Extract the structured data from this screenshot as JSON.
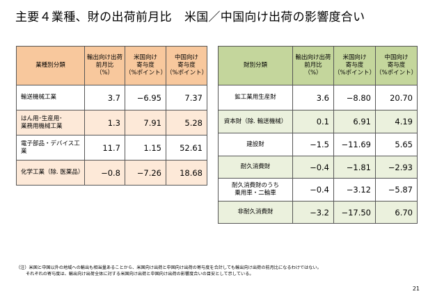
{
  "title": {
    "part1": "主要４業種、財の出荷前月比",
    "part2": "米国／中国向け出荷の影響度合い"
  },
  "left_table": {
    "headers": [
      "業種別分類",
      "輸出向け出荷\n前月比\n（%）",
      "米国向け\n寄与度\n（%ポイント）",
      "中国向け\n寄与度\n（%ポイント）"
    ],
    "rows": [
      {
        "label": "輸送機械工業",
        "values": [
          "3.7",
          "−6.95",
          "7.37"
        ]
      },
      {
        "label": "はん用･生産用･\n業務用機械工業",
        "values": [
          "1.3",
          "7.91",
          "5.28"
        ]
      },
      {
        "label": "電子部品・デバイス工業",
        "values": [
          "11.7",
          "1.15",
          "52.61"
        ]
      },
      {
        "label": "化学工業（除. 医薬品）",
        "values": [
          "−0.8",
          "−7.26",
          "18.68"
        ]
      }
    ]
  },
  "right_table": {
    "headers": [
      "財別分類",
      "輸出向け出荷\n前月比\n（%）",
      "米国向け\n寄与度\n（%ポイント）",
      "中国向け\n寄与度\n（%ポイント）"
    ],
    "rows": [
      {
        "label": "鉱工業用生産財",
        "values": [
          "3.6",
          "−8.80",
          "20.70"
        ]
      },
      {
        "label": "資本財（除. 輸送機械）",
        "values": [
          "0.1",
          "6.91",
          "4.19"
        ]
      },
      {
        "label": "建設財",
        "values": [
          "−1.5",
          "−11.69",
          "5.65"
        ]
      },
      {
        "label": "耐久消費財",
        "values": [
          "−0.4",
          "−1.81",
          "−2.93"
        ]
      },
      {
        "label": "耐久消費財のうち\n乗用車・二輪車",
        "values": [
          "−0.4",
          "−3.12",
          "−5.87"
        ]
      },
      {
        "label": "非耐久消費財",
        "values": [
          "−3.2",
          "−17.50",
          "6.70"
        ]
      }
    ]
  },
  "note": {
    "line1": "（注）米国と中国以外の地域への輸出も相当量あることから、米国向け出荷と中国向け出荷の寄与度を合計しても輸出向け出荷の前月比になるわけではない。",
    "line2": "それぞれの寄与度は、輸出向け出荷全体に対する米国向け出荷と中国向け出荷の影響度合いの目安として示している。"
  },
  "page_number": "21",
  "colors": {
    "left_header": "#f8c89d",
    "left_alt_row": "#fde9d8",
    "right_header": "#c4d69c",
    "right_alt_row": "#ebf1dd"
  }
}
